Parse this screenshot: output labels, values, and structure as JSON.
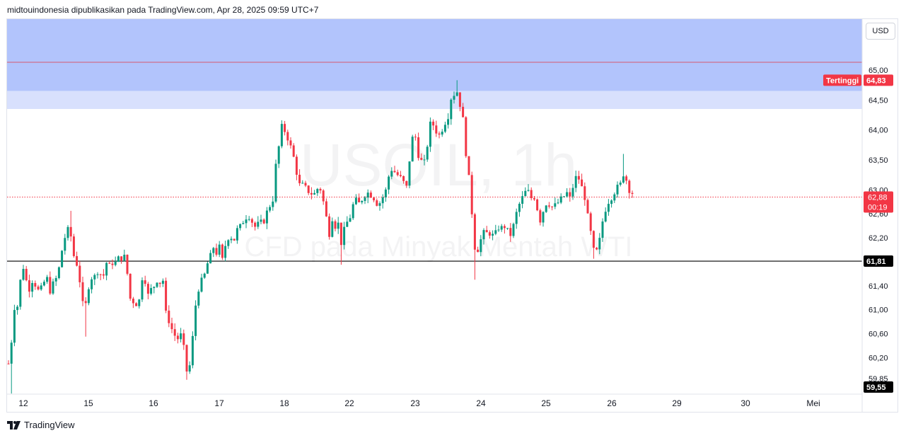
{
  "header": {
    "publisher_line": "midtouindonesia dipublikasikan pada TradingView.com, Apr 28, 2025 09:59 UTC+7"
  },
  "watermark": {
    "symbol": "USOIL, 1h",
    "description": "CFD pada Minyak Mentah WTI"
  },
  "currency_button": "USD",
  "footer": {
    "brand": "TradingView",
    "logo_icon": "tradingview-logo-icon"
  },
  "chart_data": {
    "type": "candlestick",
    "timeframe": "1h",
    "x_ticks": [
      "12",
      "15",
      "16",
      "17",
      "18",
      "22",
      "23",
      "24",
      "25",
      "26",
      "29",
      "30",
      "Mei"
    ],
    "y_ticks": [
      "65,00",
      "64,50",
      "64,00",
      "63,50",
      "63,00",
      "62,60",
      "62,20",
      "61,80",
      "61,40",
      "61,00",
      "60,60",
      "60,20",
      "59,85"
    ],
    "ylim": [
      59.85,
      65.85
    ],
    "labels": {
      "highest": {
        "text": "Tertinggi",
        "value": "64,83"
      },
      "last_price": {
        "value": "62,88",
        "countdown": "00:19"
      },
      "support_line": {
        "value": "61,81"
      },
      "lowest": {
        "value": "59,55"
      }
    },
    "zones": [
      {
        "name": "",
        "from": 64.65,
        "to": 65.85,
        "color": "#b2c4fc"
      },
      {
        "name": "",
        "from": 64.35,
        "to": 64.65,
        "color": "#d8e0fd"
      }
    ],
    "lines": [
      {
        "value": 65.13,
        "color": "#d65a6f",
        "style": "solid"
      },
      {
        "value": 61.81,
        "color": "#000000",
        "style": "solid"
      },
      {
        "value": 62.88,
        "color": "#f23645",
        "style": "dotted"
      }
    ],
    "colors": {
      "up": "#089981",
      "down": "#f23645",
      "label_red": "#f23645",
      "label_black": "#000000"
    },
    "waypoints": [
      [
        12,
        60.1
      ],
      [
        16,
        60.45
      ],
      [
        20,
        61.05
      ],
      [
        24,
        61.0
      ],
      [
        30,
        61.6
      ],
      [
        34,
        61.75
      ],
      [
        40,
        61.25
      ],
      [
        44,
        61.55
      ],
      [
        48,
        61.4
      ],
      [
        52,
        61.45
      ],
      [
        55,
        61.25
      ],
      [
        60,
        61.4
      ],
      [
        66,
        61.55
      ],
      [
        70,
        61.3
      ],
      [
        74,
        61.4
      ],
      [
        78,
        61.5
      ],
      [
        82,
        61.55
      ],
      [
        86,
        61.95
      ],
      [
        90,
        62.05
      ],
      [
        94,
        62.4
      ],
      [
        98,
        62.25
      ],
      [
        102,
        62.2
      ],
      [
        106,
        61.7
      ],
      [
        110,
        61.8
      ],
      [
        114,
        61.35
      ],
      [
        118,
        61.0
      ],
      [
        122,
        61.1
      ],
      [
        126,
        61.45
      ],
      [
        130,
        61.55
      ],
      [
        134,
        61.55
      ],
      [
        138,
        61.65
      ],
      [
        142,
        61.6
      ],
      [
        146,
        61.55
      ],
      [
        150,
        61.8
      ],
      [
        154,
        61.7
      ],
      [
        158,
        61.8
      ],
      [
        162,
        61.75
      ],
      [
        166,
        61.85
      ],
      [
        170,
        61.85
      ],
      [
        174,
        61.9
      ],
      [
        178,
        61.85
      ],
      [
        182,
        61.35
      ],
      [
        186,
        61.05
      ],
      [
        190,
        61.2
      ],
      [
        194,
        61.05
      ],
      [
        198,
        61.2
      ],
      [
        202,
        61.65
      ],
      [
        206,
        61.45
      ],
      [
        210,
        61.2
      ],
      [
        214,
        61.35
      ],
      [
        218,
        61.4
      ],
      [
        222,
        61.5
      ],
      [
        226,
        61.45
      ],
      [
        230,
        61.55
      ],
      [
        234,
        60.95
      ],
      [
        238,
        60.85
      ],
      [
        242,
        60.7
      ],
      [
        246,
        60.6
      ],
      [
        250,
        60.5
      ],
      [
        254,
        60.55
      ],
      [
        258,
        60.6
      ],
      [
        262,
        60.05
      ],
      [
        266,
        59.9
      ],
      [
        270,
        60.2
      ],
      [
        274,
        60.75
      ],
      [
        278,
        61.25
      ],
      [
        282,
        61.4
      ],
      [
        286,
        61.5
      ],
      [
        290,
        61.6
      ],
      [
        294,
        61.8
      ],
      [
        298,
        61.9
      ],
      [
        302,
        62.05
      ],
      [
        306,
        61.95
      ],
      [
        310,
        62.05
      ],
      [
        314,
        61.8
      ],
      [
        318,
        62.05
      ],
      [
        322,
        62.2
      ],
      [
        326,
        62.25
      ],
      [
        330,
        62.1
      ],
      [
        334,
        62.35
      ],
      [
        338,
        62.3
      ],
      [
        342,
        62.5
      ],
      [
        346,
        62.45
      ],
      [
        350,
        62.65
      ],
      [
        354,
        62.5
      ],
      [
        358,
        62.45
      ],
      [
        362,
        62.35
      ],
      [
        366,
        62.45
      ],
      [
        370,
        62.45
      ],
      [
        374,
        62.5
      ],
      [
        378,
        62.65
      ],
      [
        382,
        62.75
      ],
      [
        386,
        62.85
      ],
      [
        390,
        63.4
      ],
      [
        394,
        63.7
      ],
      [
        398,
        64.05
      ],
      [
        402,
        64.0
      ],
      [
        406,
        63.9
      ],
      [
        410,
        63.75
      ],
      [
        414,
        63.6
      ],
      [
        418,
        63.4
      ],
      [
        422,
        63.1
      ],
      [
        426,
        63.05
      ],
      [
        430,
        63.1
      ],
      [
        434,
        62.95
      ],
      [
        438,
        63.0
      ],
      [
        442,
        62.9
      ],
      [
        446,
        62.95
      ],
      [
        450,
        63.05
      ],
      [
        454,
        63.0
      ],
      [
        458,
        62.75
      ],
      [
        462,
        62.5
      ],
      [
        466,
        62.25
      ],
      [
        470,
        62.55
      ],
      [
        474,
        62.4
      ],
      [
        478,
        62.45
      ],
      [
        482,
        62.1
      ],
      [
        486,
        62.3
      ],
      [
        490,
        62.45
      ],
      [
        494,
        62.5
      ],
      [
        498,
        62.7
      ],
      [
        502,
        62.85
      ],
      [
        506,
        62.75
      ],
      [
        510,
        62.8
      ],
      [
        514,
        62.9
      ],
      [
        518,
        62.95
      ],
      [
        522,
        62.95
      ],
      [
        526,
        62.9
      ],
      [
        530,
        62.85
      ],
      [
        534,
        62.75
      ],
      [
        538,
        62.8
      ],
      [
        542,
        62.9
      ],
      [
        546,
        63.0
      ],
      [
        550,
        63.25
      ],
      [
        554,
        63.35
      ],
      [
        558,
        63.3
      ],
      [
        562,
        63.25
      ],
      [
        566,
        63.2
      ],
      [
        570,
        63.15
      ],
      [
        574,
        62.95
      ],
      [
        578,
        63.4
      ],
      [
        582,
        63.8
      ],
      [
        586,
        64.0
      ],
      [
        590,
        63.65
      ],
      [
        594,
        63.5
      ],
      [
        598,
        63.45
      ],
      [
        602,
        63.45
      ],
      [
        606,
        64.0
      ],
      [
        610,
        64.15
      ],
      [
        614,
        64.05
      ],
      [
        618,
        63.95
      ],
      [
        622,
        63.9
      ],
      [
        626,
        64.05
      ],
      [
        630,
        64.15
      ],
      [
        634,
        64.25
      ],
      [
        638,
        64.55
      ],
      [
        642,
        64.6
      ],
      [
        646,
        64.65
      ],
      [
        650,
        64.45
      ],
      [
        654,
        64.25
      ],
      [
        658,
        63.7
      ],
      [
        662,
        63.3
      ],
      [
        666,
        62.85
      ],
      [
        670,
        62.1
      ],
      [
        674,
        61.95
      ],
      [
        678,
        62.1
      ],
      [
        682,
        62.25
      ],
      [
        686,
        62.3
      ],
      [
        690,
        62.25
      ],
      [
        694,
        62.3
      ],
      [
        698,
        62.2
      ],
      [
        702,
        62.3
      ],
      [
        706,
        62.4
      ],
      [
        710,
        62.35
      ],
      [
        714,
        62.4
      ],
      [
        718,
        62.3
      ],
      [
        722,
        62.25
      ],
      [
        726,
        62.4
      ],
      [
        730,
        62.6
      ],
      [
        734,
        62.75
      ],
      [
        738,
        62.85
      ],
      [
        742,
        62.95
      ],
      [
        746,
        63.0
      ],
      [
        750,
        62.85
      ],
      [
        754,
        62.9
      ],
      [
        758,
        62.85
      ],
      [
        762,
        62.45
      ],
      [
        766,
        62.55
      ],
      [
        770,
        62.75
      ],
      [
        774,
        62.8
      ],
      [
        778,
        62.75
      ],
      [
        782,
        62.7
      ],
      [
        786,
        62.75
      ],
      [
        790,
        62.8
      ],
      [
        794,
        62.85
      ],
      [
        798,
        62.9
      ],
      [
        802,
        62.95
      ],
      [
        806,
        62.85
      ],
      [
        810,
        63.05
      ],
      [
        814,
        63.2
      ],
      [
        818,
        63.2
      ],
      [
        822,
        63.05
      ],
      [
        826,
        62.95
      ],
      [
        830,
        62.6
      ],
      [
        834,
        62.4
      ],
      [
        838,
        62.0
      ],
      [
        842,
        61.95
      ],
      [
        846,
        62.0
      ],
      [
        850,
        62.35
      ],
      [
        854,
        62.6
      ],
      [
        858,
        62.75
      ],
      [
        862,
        62.85
      ],
      [
        866,
        62.9
      ],
      [
        870,
        63.0
      ],
      [
        874,
        63.05
      ],
      [
        878,
        63.1
      ],
      [
        882,
        63.3
      ],
      [
        886,
        63.15
      ],
      [
        890,
        63.0
      ],
      [
        894,
        62.95
      ],
      [
        898,
        62.88
      ]
    ],
    "wick_extremes": [
      {
        "x": 16,
        "low": 59.6
      },
      {
        "x": 102,
        "high": 62.65
      },
      {
        "x": 122,
        "low": 60.55
      },
      {
        "x": 266,
        "low": 59.83
      },
      {
        "x": 402,
        "high": 64.15
      },
      {
        "x": 482,
        "low": 61.75
      },
      {
        "x": 646,
        "high": 64.83
      },
      {
        "x": 670,
        "low": 61.5
      },
      {
        "x": 838,
        "low": 61.85
      },
      {
        "x": 882,
        "high": 63.6
      }
    ]
  }
}
